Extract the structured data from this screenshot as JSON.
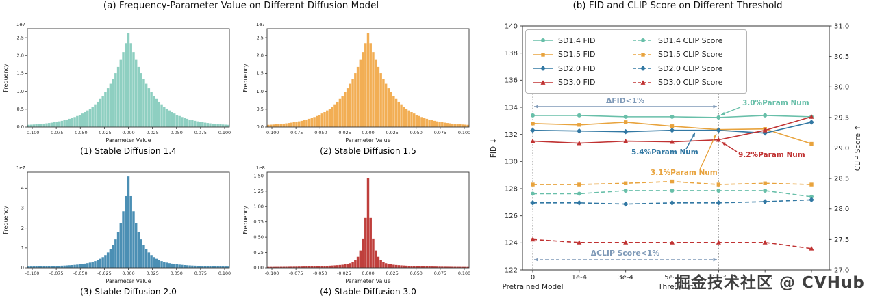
{
  "figure": {
    "panel_a_title": "(a) Frequency-Parameter Value on Different Diffusion Model",
    "panel_b_title": "(b) FID and CLIP Score on Different Threshold",
    "watermark": "掘金技术社区 @ CVHub"
  },
  "chart_data": [
    {
      "type": "bar",
      "subtype": "histogram",
      "title": "(1) Stable Diffusion 1.4",
      "xlabel": "Parameter Value",
      "ylabel": "Frequency",
      "color": "#8ecfc1",
      "offset_label": "1e7",
      "xlim": [
        -0.105,
        0.105
      ],
      "xticks": [
        "-0.100",
        "-0.075",
        "-0.050",
        "-0.025",
        "0.000",
        "0.025",
        "0.050",
        "0.075",
        "0.100"
      ],
      "yticks": [
        "0.0",
        "0.5",
        "1.0",
        "1.5",
        "2.0",
        "2.5"
      ],
      "ylim": [
        0,
        2.75
      ],
      "n_bins": 79,
      "peak": 2.6,
      "laplace_scale": 0.023,
      "wing_frac": 0.06,
      "wing_scale": 0.045,
      "tail_floor": 0.02
    },
    {
      "type": "bar",
      "subtype": "histogram",
      "title": "(2) Stable Diffusion 1.5",
      "xlabel": "Parameter Value",
      "ylabel": "Frequency",
      "color": "#f2ae54",
      "offset_label": "1e7",
      "xlim": [
        -0.105,
        0.105
      ],
      "xticks": [
        "-0.100",
        "-0.075",
        "-0.050",
        "-0.025",
        "0.000",
        "0.025",
        "0.050",
        "0.075",
        "0.100"
      ],
      "yticks": [
        "0.0",
        "0.5",
        "1.0",
        "1.5",
        "2.0",
        "2.5"
      ],
      "ylim": [
        0,
        2.75
      ],
      "n_bins": 79,
      "peak": 2.6,
      "laplace_scale": 0.023,
      "wing_frac": 0.06,
      "wing_scale": 0.045,
      "tail_floor": 0.02
    },
    {
      "type": "bar",
      "subtype": "histogram",
      "title": "(3) Stable Diffusion 2.0",
      "xlabel": "Parameter Value",
      "ylabel": "Frequency",
      "color": "#4b8fb4",
      "offset_label": "1e7",
      "xlim": [
        -0.105,
        0.105
      ],
      "xticks": [
        "-0.100",
        "-0.075",
        "-0.050",
        "-0.025",
        "0.000",
        "0.025",
        "0.050",
        "0.075",
        "0.100"
      ],
      "yticks": [
        "0",
        "1",
        "2",
        "3",
        "4"
      ],
      "ylim": [
        0,
        4.8
      ],
      "n_bins": 79,
      "peak": 4.55,
      "laplace_scale": 0.01,
      "wing_frac": 0.1,
      "wing_scale": 0.035,
      "tail_floor": 0.04
    },
    {
      "type": "bar",
      "subtype": "histogram",
      "title": "(4) Stable Diffusion 3.0",
      "xlabel": "Parameter Value",
      "ylabel": "Frequency",
      "color": "#bf3f3c",
      "offset_label": "1e8",
      "xlim": [
        -0.105,
        0.105
      ],
      "xticks": [
        "-0.100",
        "-0.075",
        "-0.050",
        "-0.025",
        "0.000",
        "0.025",
        "0.050",
        "0.075",
        "0.100"
      ],
      "yticks": [
        "0.00",
        "0.25",
        "0.50",
        "0.75",
        "1.00",
        "1.25",
        "1.50"
      ],
      "ylim": [
        0,
        1.56
      ],
      "n_bins": 79,
      "peak": 1.45,
      "laplace_scale": 0.0042,
      "wing_frac": 0.06,
      "wing_scale": 0.03,
      "tail_floor": 0.012
    },
    {
      "type": "line",
      "title": "(b) FID and CLIP Score on Different Threshold",
      "xlabel": "Threshold",
      "x_first_tick_sublabel": "Pretrained Model",
      "x_categories": [
        "0",
        "1e-4",
        "3e-4",
        "5e-4",
        "1e-3",
        "3e-3",
        "5e-3"
      ],
      "left_axis": {
        "label": "FID ↓",
        "min": 122,
        "max": 140,
        "ticks": [
          "140",
          "138",
          "136",
          "134",
          "132",
          "130",
          "128",
          "126",
          "124",
          "122"
        ]
      },
      "right_axis": {
        "label": "CLIP Score ↑",
        "min": 27.0,
        "max": 31.0,
        "ticks": [
          "31.0",
          "30.5",
          "30.0",
          "29.5",
          "29.0",
          "28.5",
          "28.0",
          "27.5",
          "27.0"
        ]
      },
      "series": [
        {
          "name": "SD1.4 FID",
          "color": "#68bfa9",
          "marker": "circle",
          "line": "solid",
          "axis": "left",
          "values": [
            133.4,
            133.4,
            133.3,
            133.3,
            133.25,
            133.4,
            133.3
          ]
        },
        {
          "name": "SD1.5 FID",
          "color": "#e8a33d",
          "marker": "square",
          "line": "solid",
          "axis": "left",
          "values": [
            132.8,
            132.7,
            132.9,
            132.6,
            132.35,
            132.4,
            131.3
          ]
        },
        {
          "name": "SD2.0 FID",
          "color": "#3278a3",
          "marker": "diamond",
          "line": "solid",
          "axis": "left",
          "values": [
            132.3,
            132.25,
            132.2,
            132.3,
            132.3,
            132.1,
            132.9
          ]
        },
        {
          "name": "SD3.0 FID",
          "color": "#c03232",
          "marker": "triangle",
          "line": "solid",
          "axis": "left",
          "values": [
            131.5,
            131.35,
            131.5,
            131.45,
            131.6,
            132.3,
            133.3
          ]
        },
        {
          "name": "SD1.4 CLIP Score",
          "color": "#68bfa9",
          "marker": "circle",
          "line": "dashed",
          "axis": "right",
          "values": [
            28.25,
            28.25,
            28.3,
            28.3,
            28.3,
            28.3,
            28.2
          ]
        },
        {
          "name": "SD1.5 CLIP Score",
          "color": "#e8a33d",
          "marker": "square",
          "line": "dashed",
          "axis": "right",
          "values": [
            28.4,
            28.4,
            28.42,
            28.45,
            28.4,
            28.42,
            28.4
          ]
        },
        {
          "name": "SD2.0 CLIP Score",
          "color": "#3278a3",
          "marker": "diamond",
          "line": "dashed",
          "axis": "right",
          "values": [
            28.1,
            28.1,
            28.08,
            28.1,
            28.1,
            28.12,
            28.15
          ]
        },
        {
          "name": "SD3.0 CLIP Score",
          "color": "#c03232",
          "marker": "triangle",
          "line": "dashed",
          "axis": "right",
          "values": [
            27.5,
            27.45,
            27.45,
            27.45,
            27.45,
            27.45,
            27.35
          ]
        }
      ],
      "vlines": {
        "x_indices": [
          0,
          4
        ],
        "color": "#8c8c8c"
      },
      "annotations": [
        {
          "text": "ΔFID<1%",
          "color": "#7e99b7"
        },
        {
          "text": "3.0%Param Num",
          "color": "#68bfa9"
        },
        {
          "text": "5.4%Param Num",
          "color": "#3278a3"
        },
        {
          "text": "3.1%Param Num",
          "color": "#e8a33d"
        },
        {
          "text": "9.2%Param Num",
          "color": "#c03232"
        },
        {
          "text": "ΔCLIP Score<1%",
          "color": "#7e99b7"
        }
      ]
    }
  ]
}
